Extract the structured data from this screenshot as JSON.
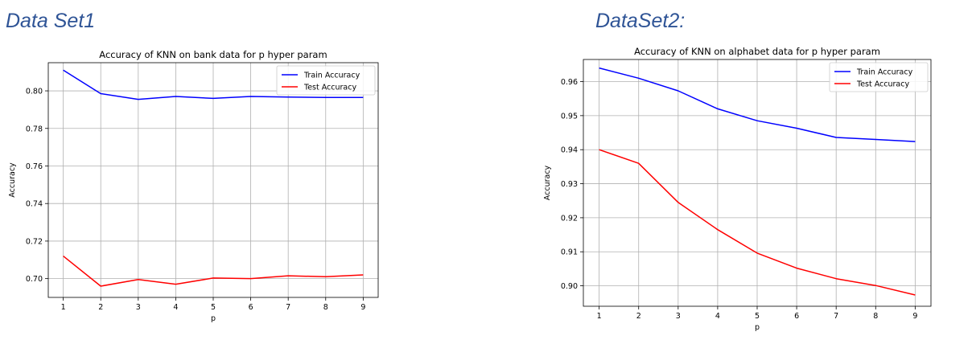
{
  "headings": [
    "Data Set1",
    "DataSet2:"
  ],
  "chart_data": [
    {
      "type": "line",
      "title": "Accuracy of KNN on bank data for p hyper param",
      "xlabel": "p",
      "ylabel": "Accuracy",
      "x": [
        1,
        2,
        3,
        4,
        5,
        6,
        7,
        8,
        9
      ],
      "xticks": [
        "1",
        "2",
        "3",
        "4",
        "5",
        "6",
        "7",
        "8",
        "9"
      ],
      "yticks": [
        "0.70",
        "0.72",
        "0.74",
        "0.76",
        "0.78",
        "0.80"
      ],
      "xlim": [
        0.6,
        9.4
      ],
      "ylim": [
        0.69,
        0.815
      ],
      "grid": true,
      "legend_position": "top-right",
      "series": [
        {
          "name": "Train Accuracy",
          "color": "#0000ff",
          "values": [
            0.811,
            0.7985,
            0.7955,
            0.797,
            0.796,
            0.797,
            0.7967,
            0.7965,
            0.7965
          ]
        },
        {
          "name": "Test Accuracy",
          "color": "#ff0000",
          "values": [
            0.712,
            0.696,
            0.6995,
            0.697,
            0.7003,
            0.7,
            0.7015,
            0.701,
            0.702
          ]
        }
      ]
    },
    {
      "type": "line",
      "title": "Accuracy of KNN on alphabet data for p hyper param",
      "xlabel": "p",
      "ylabel": "Accuracy",
      "x": [
        1,
        2,
        3,
        4,
        5,
        6,
        7,
        8,
        9
      ],
      "xticks": [
        "1",
        "2",
        "3",
        "4",
        "5",
        "6",
        "7",
        "8",
        "9"
      ],
      "yticks": [
        "0.90",
        "0.91",
        "0.92",
        "0.93",
        "0.94",
        "0.95",
        "0.96"
      ],
      "xlim": [
        0.6,
        9.4
      ],
      "ylim": [
        0.894,
        0.9665
      ],
      "grid": true,
      "legend_position": "top-right",
      "series": [
        {
          "name": "Train Accuracy",
          "color": "#0000ff",
          "values": [
            0.964,
            0.961,
            0.9573,
            0.952,
            0.9485,
            0.9463,
            0.9436,
            0.943,
            0.9424
          ]
        },
        {
          "name": "Test Accuracy",
          "color": "#ff0000",
          "values": [
            0.94,
            0.936,
            0.9245,
            0.9165,
            0.9096,
            0.9052,
            0.9021,
            0.9001,
            0.8973
          ]
        }
      ]
    }
  ]
}
